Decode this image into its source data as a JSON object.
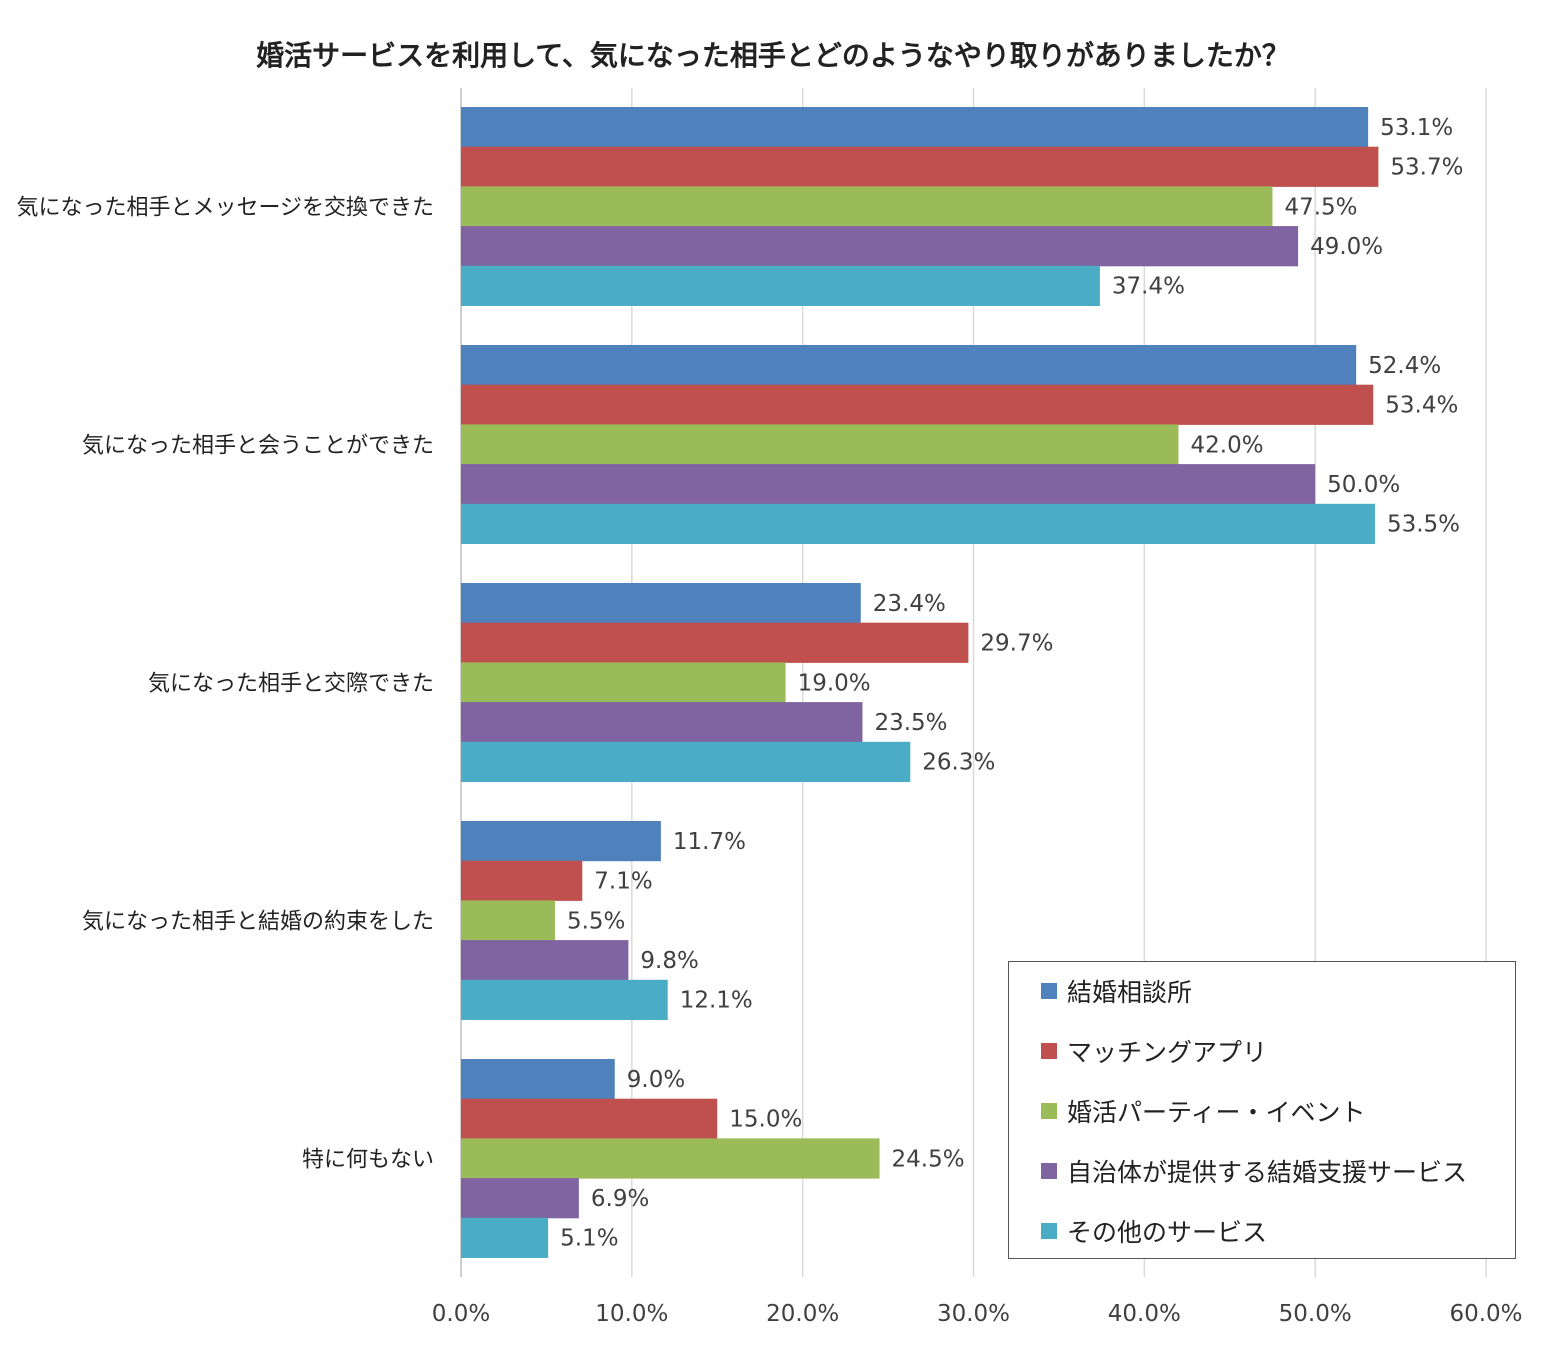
{
  "chart_data": {
    "type": "bar",
    "orientation": "horizontal",
    "title": "婚活サービスを利用して、気になった相手とどのようなやり取りがありましたか？",
    "categories": [
      "気になった相手とメッセージを交換できた",
      "気になった相手と会うことができた",
      "気になった相手と交際できた",
      "気になった相手と結婚の約束をした",
      "特に何もない"
    ],
    "series": [
      {
        "name": "結婚相談所",
        "color": "#4F81BD",
        "values": [
          53.1,
          52.4,
          23.4,
          11.7,
          9.0
        ]
      },
      {
        "name": "マッチングアプリ",
        "color": "#C0504D",
        "values": [
          53.7,
          53.4,
          29.7,
          7.1,
          15.0
        ]
      },
      {
        "name": "婚活パーティー・イベント",
        "color": "#9BBB59",
        "values": [
          47.5,
          42.0,
          19.0,
          5.5,
          24.5
        ]
      },
      {
        "name": "自治体が提供する結婚支援サービス",
        "color": "#8064A2",
        "values": [
          49.0,
          50.0,
          23.5,
          9.8,
          6.9
        ]
      },
      {
        "name": "その他のサービス",
        "color": "#4BACC6",
        "values": [
          37.4,
          53.5,
          26.3,
          12.1,
          5.1
        ]
      }
    ],
    "xlim": [
      0,
      60
    ],
    "x_ticks": [
      0,
      10,
      20,
      30,
      40,
      50,
      60
    ],
    "x_tick_labels": [
      "0.0%",
      "10.0%",
      "20.0%",
      "30.0%",
      "40.0%",
      "50.0%",
      "60.0%"
    ],
    "value_suffix": "%",
    "value_decimals": 1,
    "grid": true,
    "legend_position": "bottom-right"
  }
}
